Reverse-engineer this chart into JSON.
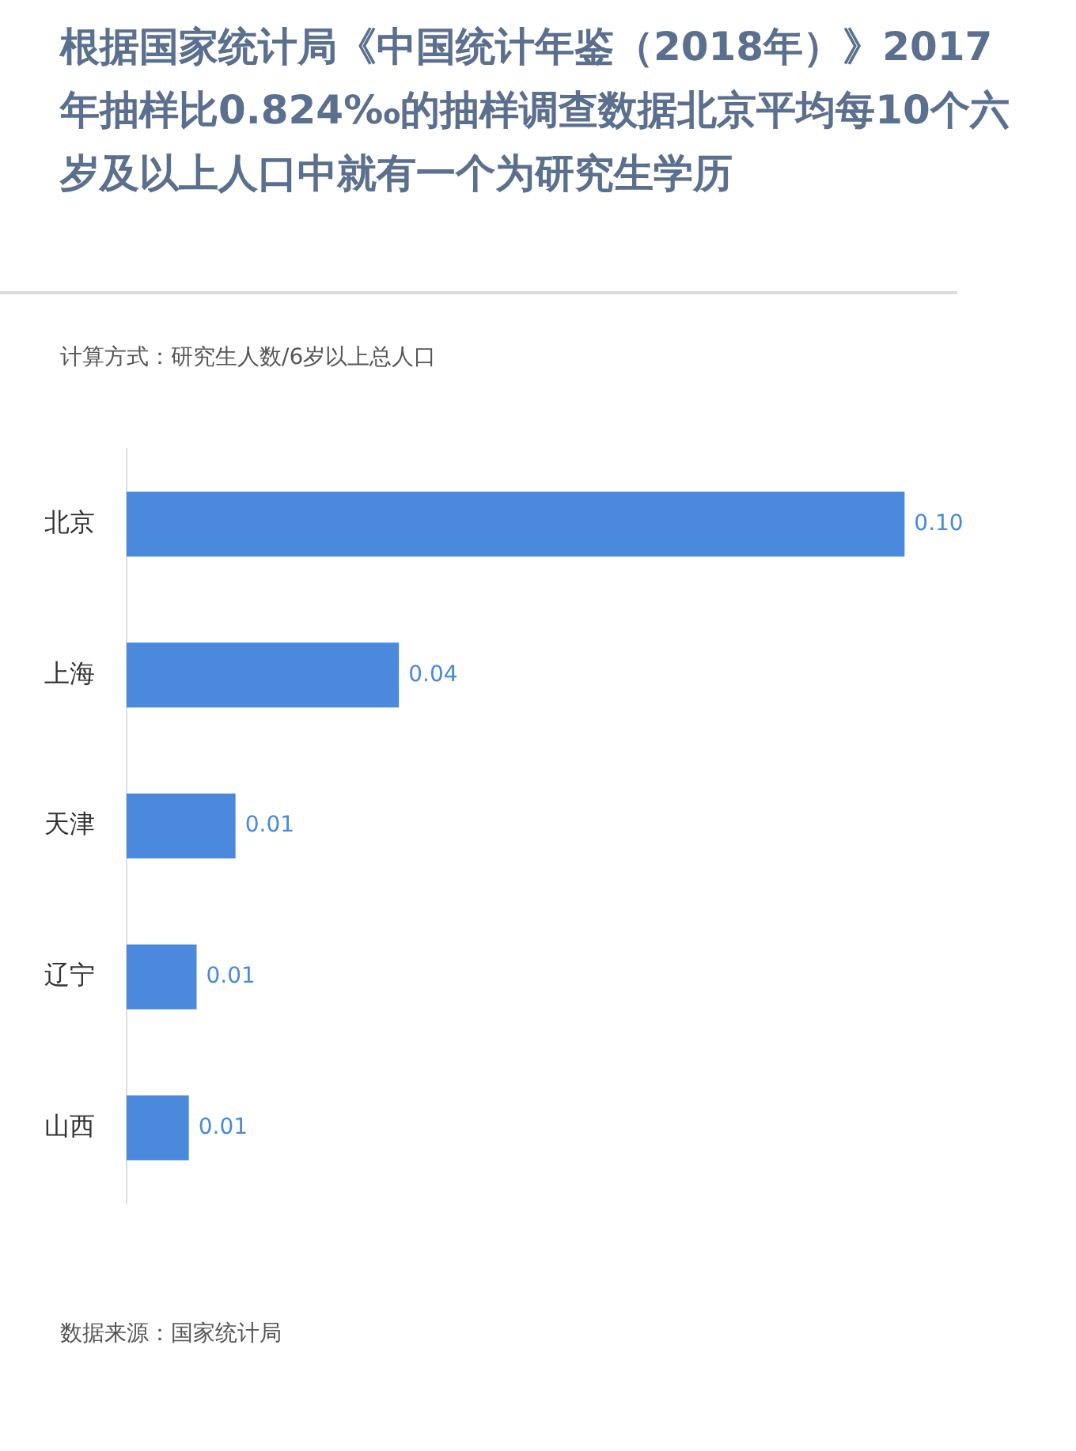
{
  "chart_data": {
    "type": "bar",
    "orientation": "horizontal",
    "title": "根据国家统计局《中国统计年鉴（2018年）》2017年抽样比0.824‰的抽样调查数据北京平均每10个六岁及以上人口中就有一个为研究生学历",
    "subtitle": "计算方式：研究生人数/6岁以上总人口",
    "categories": [
      "北京",
      "上海",
      "天津",
      "辽宁",
      "山西"
    ],
    "values": [
      0.1,
      0.035,
      0.014,
      0.009,
      0.008
    ],
    "value_labels": [
      "0.10",
      "0.04",
      "0.01",
      "0.01",
      "0.01"
    ],
    "color": "#4a89dc",
    "annotations": [
      "数据来源：国家统计局"
    ]
  }
}
